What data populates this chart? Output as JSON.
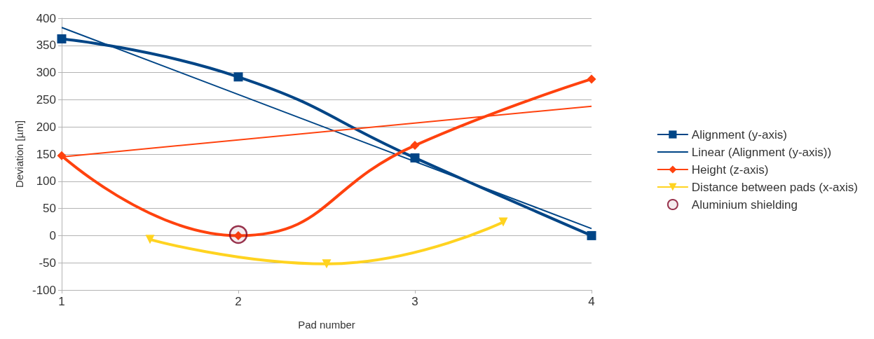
{
  "chart_data": {
    "type": "line",
    "xlabel": "Pad number",
    "ylabel": "Deviation [µm]",
    "xlim": [
      1,
      4
    ],
    "xticks": [
      1,
      2,
      3,
      4
    ],
    "ylim": [
      -100,
      400
    ],
    "yticks": [
      -100,
      -50,
      0,
      50,
      100,
      150,
      200,
      250,
      300,
      350,
      400
    ],
    "grid": "y",
    "legend": "right",
    "series": [
      {
        "name": "Alignment (y-axis)",
        "color": "#004586",
        "x": [
          1,
          2,
          3,
          4
        ],
        "values": [
          362,
          292,
          143,
          0
        ],
        "marker": "square"
      },
      {
        "name": "Linear (Alignment (y-axis))",
        "color": "#004586",
        "x": [
          1,
          4
        ],
        "values": [
          383,
          13
        ],
        "marker": "none"
      },
      {
        "name": "Height (z-axis)",
        "color": "#ff420e",
        "x": [
          1,
          2,
          3,
          4
        ],
        "values": [
          147,
          0,
          166,
          288
        ],
        "marker": "diamond"
      },
      {
        "color": "#ff420e",
        "x": [
          1,
          4
        ],
        "values": [
          145,
          238
        ],
        "marker": "none"
      },
      {
        "name": "Distance between pads (x-axis)",
        "color": "#ffd320",
        "x": [
          1.5,
          2.5,
          3.5
        ],
        "values": [
          -7,
          -52,
          25
        ],
        "marker": "triangle"
      },
      {
        "name": "Aluminium shielding",
        "type": "scatter",
        "color": "#7e0021",
        "x": [
          2
        ],
        "values": [
          2
        ],
        "marker": "circle"
      }
    ]
  }
}
